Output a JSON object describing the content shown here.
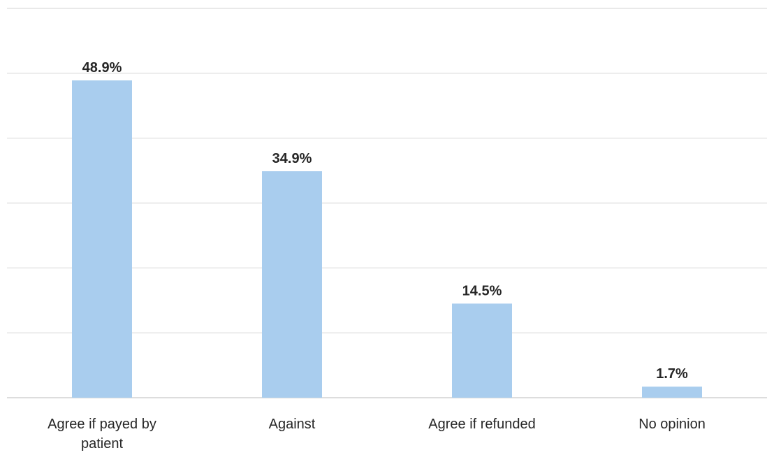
{
  "chart_data": {
    "type": "bar",
    "categories": [
      "Agree if payed by patient",
      "Against",
      "Agree if refunded",
      "No opinion"
    ],
    "category_lines": [
      [
        "Agree if payed by",
        "patient"
      ],
      [
        "Against"
      ],
      [
        "Agree if refunded"
      ],
      [
        "No opinion"
      ]
    ],
    "values": [
      48.9,
      34.9,
      14.5,
      1.7
    ],
    "data_labels": [
      "48.9%",
      "34.9%",
      "14.5%",
      "1.7%"
    ],
    "unit": "%",
    "title": "",
    "xlabel": "",
    "ylabel": "",
    "ylim": [
      0,
      60
    ],
    "yticks_gridlines": [
      0,
      10,
      20,
      30,
      40,
      50,
      60
    ],
    "y_tick_labels_shown": false,
    "grid": true,
    "legend": "none",
    "colors": {
      "bar": "#a9cdee",
      "gridline": "#dcdcdc",
      "text": "#262626"
    }
  }
}
